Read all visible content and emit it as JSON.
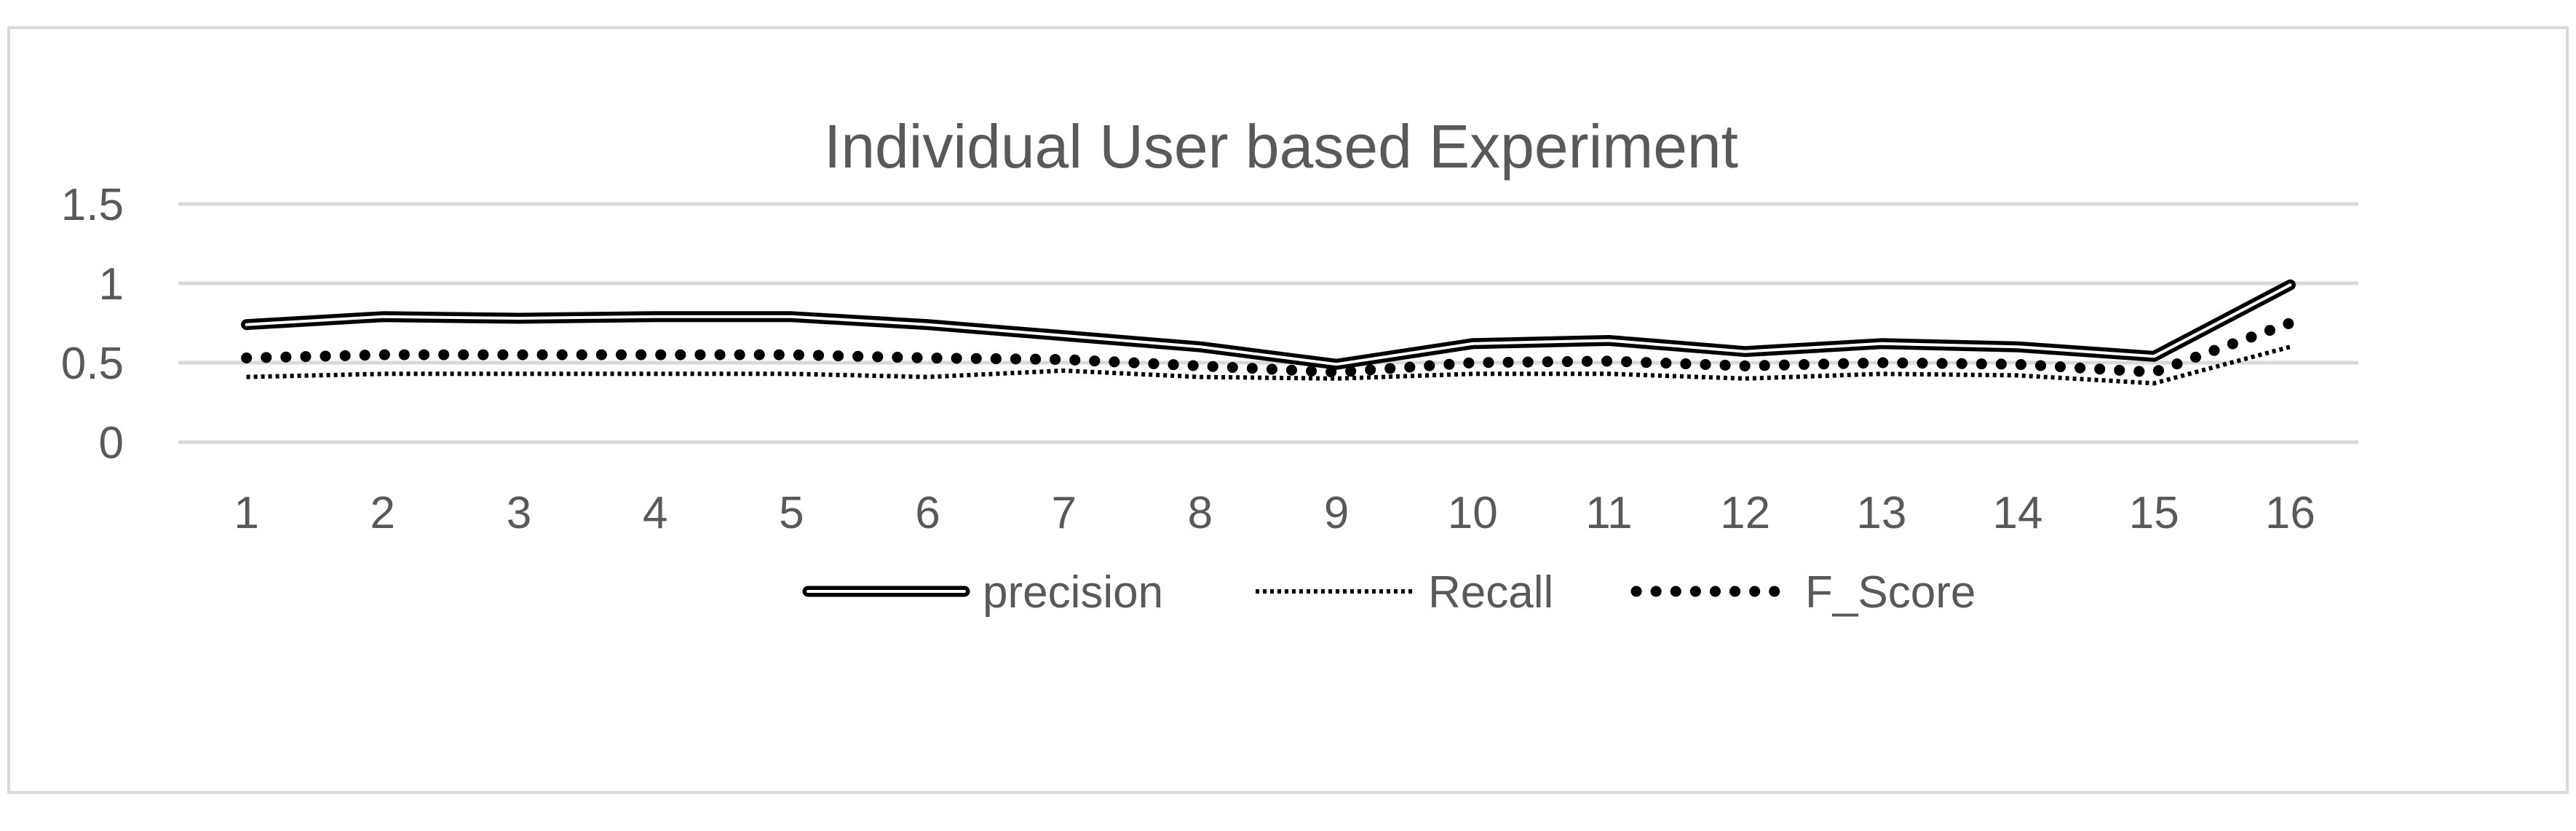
{
  "chart_data": {
    "type": "line",
    "title": "Individual User based Experiment",
    "categories": [
      "1",
      "2",
      "3",
      "4",
      "5",
      "6",
      "7",
      "8",
      "9",
      "10",
      "11",
      "12",
      "13",
      "14",
      "15",
      "16"
    ],
    "ylim": [
      0,
      1.5
    ],
    "yticks": [
      "0",
      "0.5",
      "1",
      "1.5"
    ],
    "grid": true,
    "legend_position": "bottom",
    "series": [
      {
        "name": "precision",
        "style": "double-line",
        "color": "#000000",
        "values": [
          0.74,
          0.79,
          0.78,
          0.79,
          0.79,
          0.74,
          0.67,
          0.6,
          0.49,
          0.62,
          0.64,
          0.57,
          0.62,
          0.6,
          0.54,
          0.99
        ]
      },
      {
        "name": "Recall",
        "style": "dotted",
        "color": "#000000",
        "values": [
          0.41,
          0.43,
          0.43,
          0.43,
          0.43,
          0.41,
          0.45,
          0.41,
          0.4,
          0.43,
          0.43,
          0.4,
          0.43,
          0.42,
          0.37,
          0.6
        ]
      },
      {
        "name": "F_Score",
        "style": "round-dot",
        "color": "#000000",
        "values": [
          0.53,
          0.55,
          0.55,
          0.55,
          0.55,
          0.53,
          0.52,
          0.48,
          0.44,
          0.5,
          0.51,
          0.48,
          0.5,
          0.49,
          0.44,
          0.75
        ]
      }
    ]
  }
}
